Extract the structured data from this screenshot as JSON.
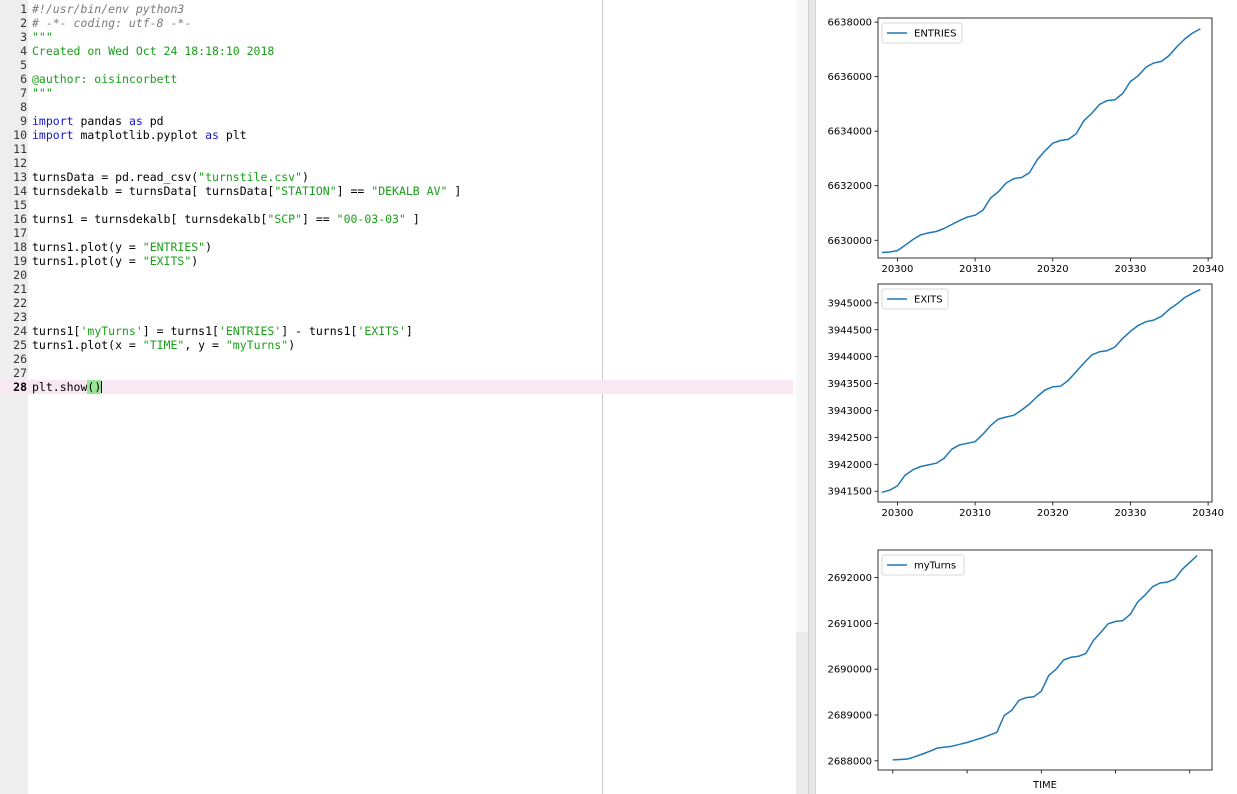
{
  "editor": {
    "current_line": 28,
    "lines": [
      {
        "n": "1",
        "segs": [
          {
            "t": "#!/usr/bin/env python3",
            "c": "cm"
          }
        ]
      },
      {
        "n": "2",
        "segs": [
          {
            "t": "# -*- coding: utf-8 -*-",
            "c": "cm"
          }
        ]
      },
      {
        "n": "3",
        "segs": [
          {
            "t": "\"\"\"",
            "c": "doc"
          }
        ]
      },
      {
        "n": "4",
        "segs": [
          {
            "t": "Created on Wed Oct 24 18:18:10 2018",
            "c": "doc"
          }
        ]
      },
      {
        "n": "5",
        "segs": []
      },
      {
        "n": "6",
        "segs": [
          {
            "t": "@author: oisincorbett",
            "c": "doc"
          }
        ]
      },
      {
        "n": "7",
        "segs": [
          {
            "t": "\"\"\"",
            "c": "doc"
          }
        ]
      },
      {
        "n": "8",
        "segs": []
      },
      {
        "n": "9",
        "segs": [
          {
            "t": "import",
            "c": "kw"
          },
          {
            "t": " pandas "
          },
          {
            "t": "as",
            "c": "kw"
          },
          {
            "t": " pd"
          }
        ]
      },
      {
        "n": "10",
        "segs": [
          {
            "t": "import",
            "c": "kw"
          },
          {
            "t": " matplotlib.pyplot "
          },
          {
            "t": "as",
            "c": "kw"
          },
          {
            "t": " plt"
          }
        ]
      },
      {
        "n": "11",
        "segs": []
      },
      {
        "n": "12",
        "segs": []
      },
      {
        "n": "13",
        "segs": [
          {
            "t": "turnsData = pd.read_csv("
          },
          {
            "t": "\"turnstile.csv\"",
            "c": "st"
          },
          {
            "t": ")"
          }
        ]
      },
      {
        "n": "14",
        "segs": [
          {
            "t": "turnsdekalb = turnsData[ turnsData["
          },
          {
            "t": "\"STATION\"",
            "c": "st"
          },
          {
            "t": "] == "
          },
          {
            "t": "\"DEKALB AV\"",
            "c": "st"
          },
          {
            "t": " ]"
          }
        ]
      },
      {
        "n": "15",
        "segs": []
      },
      {
        "n": "16",
        "segs": [
          {
            "t": "turns1 = turnsdekalb[ turnsdekalb["
          },
          {
            "t": "\"SCP\"",
            "c": "st"
          },
          {
            "t": "] == "
          },
          {
            "t": "\"00-03-03\"",
            "c": "st"
          },
          {
            "t": " ]"
          }
        ]
      },
      {
        "n": "17",
        "segs": []
      },
      {
        "n": "18",
        "segs": [
          {
            "t": "turns1.plot(y = "
          },
          {
            "t": "\"ENTRIES\"",
            "c": "st"
          },
          {
            "t": ")"
          }
        ]
      },
      {
        "n": "19",
        "segs": [
          {
            "t": "turns1.plot(y = "
          },
          {
            "t": "\"EXITS\"",
            "c": "st"
          },
          {
            "t": ")"
          }
        ]
      },
      {
        "n": "20",
        "segs": []
      },
      {
        "n": "21",
        "segs": []
      },
      {
        "n": "22",
        "segs": []
      },
      {
        "n": "23",
        "segs": []
      },
      {
        "n": "24",
        "segs": [
          {
            "t": "turns1["
          },
          {
            "t": "'myTurns'",
            "c": "st"
          },
          {
            "t": "] = turns1["
          },
          {
            "t": "'ENTRIES'",
            "c": "st"
          },
          {
            "t": "] - turns1["
          },
          {
            "t": "'EXITS'",
            "c": "st"
          },
          {
            "t": "]"
          }
        ]
      },
      {
        "n": "25",
        "segs": [
          {
            "t": "turns1.plot(x = "
          },
          {
            "t": "\"TIME\"",
            "c": "st"
          },
          {
            "t": ", y = "
          },
          {
            "t": "\"myTurns\"",
            "c": "st"
          },
          {
            "t": ")"
          }
        ]
      },
      {
        "n": "26",
        "segs": []
      },
      {
        "n": "27",
        "segs": []
      },
      {
        "n": "28",
        "segs": [
          {
            "t": "plt.show"
          },
          {
            "t": "()",
            "c": "pm"
          }
        ]
      }
    ]
  },
  "colors": {
    "line": "#1f77b4"
  },
  "chart_data": [
    {
      "type": "line",
      "legend": "top-left",
      "xlim": [
        20297.5,
        20340.5
      ],
      "ylim": [
        6629350,
        6638150
      ],
      "xticks": [
        {
          "v": 20300,
          "label": "20300"
        },
        {
          "v": 20310,
          "label": "20310"
        },
        {
          "v": 20320,
          "label": "20320"
        },
        {
          "v": 20330,
          "label": "20330"
        },
        {
          "v": 20340,
          "label": "20340"
        }
      ],
      "yticks": [
        {
          "v": 6630000,
          "label": "6630000"
        },
        {
          "v": 6632000,
          "label": "6632000"
        },
        {
          "v": 6634000,
          "label": "6634000"
        },
        {
          "v": 6636000,
          "label": "6636000"
        },
        {
          "v": 6638000,
          "label": "6638000"
        }
      ],
      "xlabel": "",
      "series": [
        {
          "name": "ENTRIES",
          "x": [
            20298,
            20299,
            20300,
            20301,
            20302,
            20303,
            20304,
            20305,
            20306,
            20307,
            20308,
            20309,
            20310,
            20311,
            20312,
            20313,
            20314,
            20315,
            20316,
            20317,
            20318,
            20319,
            20320,
            20321,
            20322,
            20323,
            20324,
            20325,
            20326,
            20327,
            20328,
            20329,
            20330,
            20331,
            20332,
            20333,
            20334,
            20335,
            20336,
            20337,
            20338,
            20339
          ],
          "y": [
            6629550,
            6629570,
            6629620,
            6629820,
            6630030,
            6630200,
            6630270,
            6630320,
            6630430,
            6630580,
            6630720,
            6630850,
            6630920,
            6631100,
            6631550,
            6631780,
            6632100,
            6632260,
            6632300,
            6632480,
            6632950,
            6633280,
            6633560,
            6633660,
            6633700,
            6633900,
            6634380,
            6634650,
            6634980,
            6635120,
            6635150,
            6635380,
            6635820,
            6636030,
            6636350,
            6636500,
            6636560,
            6636780,
            6637100,
            6637380,
            6637600,
            6637750
          ]
        }
      ]
    },
    {
      "type": "line",
      "legend": "top-left",
      "xlim": [
        20297.5,
        20340.5
      ],
      "ylim": [
        3941300,
        3945350
      ],
      "xticks": [
        {
          "v": 20300,
          "label": "20300"
        },
        {
          "v": 20310,
          "label": "20310"
        },
        {
          "v": 20320,
          "label": "20320"
        },
        {
          "v": 20330,
          "label": "20330"
        },
        {
          "v": 20340,
          "label": "20340"
        }
      ],
      "yticks": [
        {
          "v": 3941500,
          "label": "3941500"
        },
        {
          "v": 3942000,
          "label": "3942000"
        },
        {
          "v": 3942500,
          "label": "3942500"
        },
        {
          "v": 3943000,
          "label": "3943000"
        },
        {
          "v": 3943500,
          "label": "3943500"
        },
        {
          "v": 3944000,
          "label": "3944000"
        },
        {
          "v": 3944500,
          "label": "3944500"
        },
        {
          "v": 3945000,
          "label": "3945000"
        }
      ],
      "xlabel": "",
      "series": [
        {
          "name": "EXITS",
          "x": [
            20298,
            20299,
            20300,
            20301,
            20302,
            20303,
            20304,
            20305,
            20306,
            20307,
            20308,
            20309,
            20310,
            20311,
            20312,
            20313,
            20314,
            20315,
            20316,
            20317,
            20318,
            20319,
            20320,
            20321,
            20322,
            20323,
            20324,
            20325,
            20326,
            20327,
            20328,
            20329,
            20330,
            20331,
            20332,
            20333,
            20334,
            20335,
            20336,
            20337,
            20338,
            20339
          ],
          "y": [
            3941480,
            3941520,
            3941600,
            3941800,
            3941900,
            3941960,
            3941990,
            3942020,
            3942110,
            3942280,
            3942360,
            3942390,
            3942420,
            3942560,
            3942720,
            3942840,
            3942880,
            3942910,
            3943010,
            3943120,
            3943260,
            3943380,
            3943440,
            3943450,
            3943560,
            3943720,
            3943880,
            3944030,
            3944090,
            3944110,
            3944180,
            3944340,
            3944470,
            3944580,
            3944650,
            3944680,
            3944750,
            3944880,
            3944980,
            3945100,
            3945180,
            3945250
          ]
        }
      ]
    },
    {
      "type": "line",
      "legend": "top-left",
      "xlim": [
        -2,
        43
      ],
      "ylim": [
        2687800,
        2692600
      ],
      "xticks": [
        {
          "v": 0,
          "label": ""
        },
        {
          "v": 10,
          "label": ""
        },
        {
          "v": 20,
          "label": ""
        },
        {
          "v": 30,
          "label": ""
        },
        {
          "v": 40,
          "label": ""
        }
      ],
      "yticks": [
        {
          "v": 2688000,
          "label": "2688000"
        },
        {
          "v": 2689000,
          "label": "2689000"
        },
        {
          "v": 2690000,
          "label": "2690000"
        },
        {
          "v": 2691000,
          "label": "2691000"
        },
        {
          "v": 2692000,
          "label": "2692000"
        }
      ],
      "xlabel": "TIME",
      "series": [
        {
          "name": "myTurns",
          "x": [
            0,
            1,
            2,
            3,
            4,
            5,
            6,
            7,
            8,
            9,
            10,
            11,
            12,
            13,
            14,
            15,
            16,
            17,
            18,
            19,
            20,
            21,
            22,
            23,
            24,
            25,
            26,
            27,
            28,
            29,
            30,
            31,
            32,
            33,
            34,
            35,
            36,
            37,
            38,
            39,
            40,
            41
          ],
          "y": [
            2688020,
            2688030,
            2688040,
            2688090,
            2688150,
            2688210,
            2688280,
            2688300,
            2688320,
            2688360,
            2688400,
            2688450,
            2688500,
            2688560,
            2688620,
            2688990,
            2689100,
            2689320,
            2689380,
            2689400,
            2689520,
            2689860,
            2690000,
            2690200,
            2690260,
            2690280,
            2690340,
            2690620,
            2690800,
            2690990,
            2691040,
            2691060,
            2691200,
            2691470,
            2691620,
            2691800,
            2691880,
            2691900,
            2691970,
            2692180,
            2692330,
            2692480
          ]
        }
      ]
    }
  ]
}
